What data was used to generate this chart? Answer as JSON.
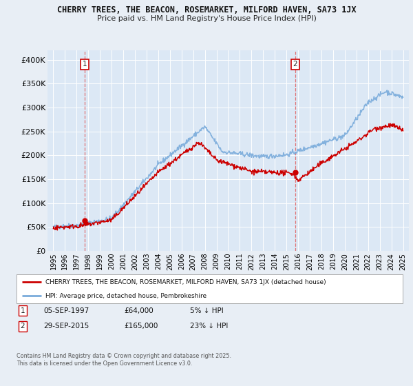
{
  "title_line1": "CHERRY TREES, THE BEACON, ROSEMARKET, MILFORD HAVEN, SA73 1JX",
  "title_line2": "Price paid vs. HM Land Registry's House Price Index (HPI)",
  "background_color": "#e8eef5",
  "plot_bg_color": "#dce8f5",
  "sale1_date_x": 1997.68,
  "sale1_price": 64000,
  "sale1_label": "1",
  "sale2_date_x": 2015.75,
  "sale2_price": 165000,
  "sale2_label": "2",
  "ylim": [
    0,
    420000
  ],
  "xlim": [
    1994.5,
    2025.5
  ],
  "yticks": [
    0,
    50000,
    100000,
    150000,
    200000,
    250000,
    300000,
    350000,
    400000
  ],
  "ytick_labels": [
    "£0",
    "£50K",
    "£100K",
    "£150K",
    "£200K",
    "£250K",
    "£300K",
    "£350K",
    "£400K"
  ],
  "xtick_years": [
    1995,
    1996,
    1997,
    1998,
    1999,
    2000,
    2001,
    2002,
    2003,
    2004,
    2005,
    2006,
    2007,
    2008,
    2009,
    2010,
    2011,
    2012,
    2013,
    2014,
    2015,
    2016,
    2017,
    2018,
    2019,
    2020,
    2021,
    2022,
    2023,
    2024,
    2025
  ],
  "legend_label1": "CHERRY TREES, THE BEACON, ROSEMARKET, MILFORD HAVEN, SA73 1JX (detached house)",
  "legend_label2": "HPI: Average price, detached house, Pembrokeshire",
  "footer": "Contains HM Land Registry data © Crown copyright and database right 2025.\nThis data is licensed under the Open Government Licence v3.0.",
  "line_red": "#cc0000",
  "line_blue": "#7aabdb",
  "dashed_red": "#e06060",
  "ann1_date": "05-SEP-1997",
  "ann1_price": "£64,000",
  "ann1_note": "5% ↓ HPI",
  "ann2_date": "29-SEP-2015",
  "ann2_price": "£165,000",
  "ann2_note": "23% ↓ HPI"
}
